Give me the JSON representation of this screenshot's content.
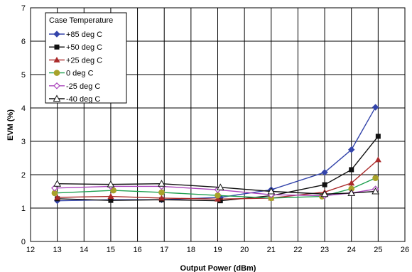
{
  "chart_data": {
    "type": "line",
    "title": "",
    "xlabel": "Output Power (dBm)",
    "ylabel": "EVM (%)",
    "xlim": [
      12,
      26
    ],
    "ylim": [
      0,
      7
    ],
    "xticks": [
      12,
      13,
      14,
      15,
      16,
      17,
      18,
      19,
      20,
      21,
      22,
      23,
      24,
      25,
      26
    ],
    "yticks": [
      0,
      1,
      2,
      3,
      4,
      5,
      6,
      7
    ],
    "grid": true,
    "legend": {
      "title": "Case Temperature",
      "position": "top-left"
    },
    "series": [
      {
        "name": "+85 deg C",
        "color": "#3344aa",
        "marker": "diamond",
        "x": [
          13,
          15,
          16.9,
          19.1,
          21,
          23,
          24,
          24.9
        ],
        "y": [
          1.22,
          1.25,
          1.25,
          1.32,
          1.55,
          2.07,
          2.75,
          4.02
        ]
      },
      {
        "name": "+50 deg C",
        "color": "#111111",
        "marker": "square",
        "x": [
          13,
          15,
          16.9,
          19.1,
          21,
          23,
          24,
          25
        ],
        "y": [
          1.28,
          1.23,
          1.25,
          1.22,
          1.37,
          1.7,
          2.15,
          3.15
        ]
      },
      {
        "name": "+25 deg C",
        "color": "#aa2a2a",
        "marker": "triangle",
        "x": [
          13,
          15,
          16.9,
          19,
          21,
          23,
          24,
          25
        ],
        "y": [
          1.32,
          1.35,
          1.3,
          1.27,
          1.3,
          1.48,
          1.75,
          2.45
        ]
      },
      {
        "name": "0 deg C",
        "color": "#1fa050",
        "marker": "circle",
        "x": [
          12.9,
          15.1,
          16.9,
          19,
          21,
          22.9,
          24,
          24.9
        ],
        "y": [
          1.45,
          1.53,
          1.47,
          1.38,
          1.3,
          1.35,
          1.58,
          1.9
        ]
      },
      {
        "name": "-25 deg C",
        "color": "#aa44bb",
        "marker": "diamond-open",
        "x": [
          12.9,
          15,
          16.9,
          19,
          21,
          23,
          24,
          24.9
        ],
        "y": [
          1.6,
          1.65,
          1.65,
          1.55,
          1.4,
          1.37,
          1.45,
          1.57
        ]
      },
      {
        "name": "-40 deg C",
        "color": "#111111",
        "marker": "triangle-open",
        "x": [
          13,
          15,
          16.9,
          19.1,
          21,
          23,
          24,
          24.9
        ],
        "y": [
          1.73,
          1.71,
          1.73,
          1.62,
          1.5,
          1.42,
          1.45,
          1.5
        ]
      }
    ]
  }
}
